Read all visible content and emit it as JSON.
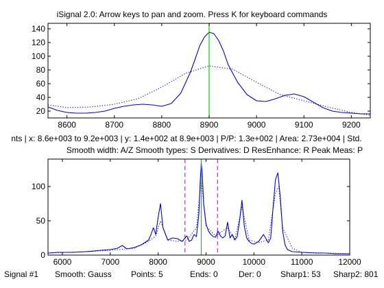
{
  "window_title": "iSignal 2.0:  Arrow keys to pan and zoom. Press K for keyboard commands",
  "info_line": "nts | x: 8.6e+003 to 9.2e+003 | y: 1.4e+002 at 8.9e+003 | P/P: 1.3e+002 | Area: 2.73e+004 | Std.",
  "keys_line": "Smooth width: A/Z    Smooth types: S    Derivatives: D    ResEnhance: R    Peak Meas: P",
  "status_line": {
    "signal": "Signal #1",
    "smooth": "Smooth: Gauss",
    "points": "Points: 5",
    "ends": "Ends: 0",
    "der": "Der: 0",
    "sharp1": "Sharp1: 53",
    "sharp2": "Sharp2: 801"
  },
  "colors": {
    "signal": "#0000cc",
    "cursor": "#00cc00",
    "window_markers": "#ff00ff",
    "axes": "#000000"
  },
  "chart_data": [
    {
      "type": "line",
      "panel": "upper (zoomed view)",
      "xlim": [
        8560,
        9240
      ],
      "ylim": [
        10,
        148
      ],
      "xticks": [
        8600,
        8700,
        8800,
        8900,
        9000,
        9100,
        9200
      ],
      "yticks": [
        20,
        40,
        60,
        80,
        100,
        120,
        140
      ],
      "cursor_x": 8900,
      "series": [
        {
          "style": "solid",
          "x": [
            8560,
            8580,
            8600,
            8620,
            8640,
            8660,
            8680,
            8700,
            8720,
            8740,
            8760,
            8780,
            8800,
            8820,
            8840,
            8860,
            8870,
            8880,
            8890,
            8900,
            8910,
            8920,
            8930,
            8940,
            8960,
            8980,
            9000,
            9020,
            9040,
            9060,
            9080,
            9100,
            9120,
            9140,
            9160,
            9180,
            9200,
            9220,
            9240
          ],
          "values": [
            26,
            21,
            18,
            17,
            17,
            18,
            20,
            24,
            27,
            29,
            30,
            29,
            27,
            31,
            46,
            76,
            95,
            115,
            128,
            135,
            133,
            123,
            108,
            88,
            62,
            44,
            35,
            34,
            38,
            43,
            45,
            41,
            33,
            25,
            20,
            18,
            17,
            16,
            16
          ]
        },
        {
          "style": "dotted",
          "x": [
            8560,
            8600,
            8650,
            8700,
            8750,
            8800,
            8850,
            8900,
            8950,
            9000,
            9050,
            9100,
            9150,
            9200,
            9240
          ],
          "values": [
            29,
            25,
            26,
            30,
            38,
            55,
            75,
            86,
            81,
            62,
            44,
            35,
            26,
            18,
            14
          ]
        }
      ]
    },
    {
      "type": "line",
      "panel": "lower (full signal)",
      "xlim": [
        5700,
        12000
      ],
      "ylim": [
        0,
        140
      ],
      "xticks": [
        6000,
        7000,
        8000,
        9000,
        10000,
        11000,
        12000
      ],
      "yticks": [
        0,
        50,
        100
      ],
      "cursor_x": 8900,
      "window_markers": [
        8560,
        9240
      ],
      "series": [
        {
          "style": "solid",
          "x": [
            5700,
            5900,
            6200,
            6500,
            6800,
            7000,
            7150,
            7250,
            7350,
            7500,
            7650,
            7800,
            7850,
            7900,
            7950,
            8000,
            8050,
            8100,
            8200,
            8300,
            8400,
            8500,
            8550,
            8600,
            8650,
            8700,
            8750,
            8800,
            8850,
            8880,
            8900,
            8920,
            8950,
            9000,
            9050,
            9100,
            9150,
            9200,
            9250,
            9300,
            9350,
            9400,
            9450,
            9500,
            9550,
            9600,
            9650,
            9700,
            9750,
            9800,
            9850,
            9900,
            9950,
            10000,
            10050,
            10100,
            10150,
            10200,
            10250,
            10300,
            10350,
            10400,
            10450,
            10500,
            10550,
            10600,
            10650,
            10700,
            10800,
            11000,
            11300,
            11500,
            11700,
            12000
          ],
          "values": [
            3,
            4,
            4,
            5,
            7,
            8,
            10,
            14,
            9,
            11,
            15,
            22,
            30,
            40,
            30,
            55,
            75,
            40,
            22,
            25,
            24,
            20,
            24,
            28,
            20,
            22,
            30,
            27,
            60,
            110,
            135,
            120,
            75,
            45,
            35,
            30,
            27,
            26,
            35,
            28,
            25,
            28,
            48,
            25,
            30,
            22,
            27,
            50,
            80,
            42,
            25,
            20,
            17,
            16,
            18,
            20,
            25,
            30,
            24,
            18,
            25,
            70,
            110,
            120,
            85,
            35,
            15,
            8,
            5,
            4,
            3,
            3,
            2,
            2
          ]
        },
        {
          "style": "dotted",
          "x": [
            5700,
            6500,
            7000,
            7500,
            7800,
            7950,
            8050,
            8200,
            8400,
            8600,
            8800,
            8900,
            9000,
            9200,
            9450,
            9600,
            9750,
            9900,
            10100,
            10300,
            10450,
            10520,
            10600,
            10800,
            11000,
            12000
          ],
          "values": [
            3,
            5,
            7,
            10,
            20,
            28,
            50,
            22,
            20,
            22,
            40,
            110,
            42,
            28,
            40,
            22,
            70,
            22,
            18,
            22,
            90,
            100,
            40,
            10,
            4,
            2
          ]
        }
      ]
    }
  ]
}
